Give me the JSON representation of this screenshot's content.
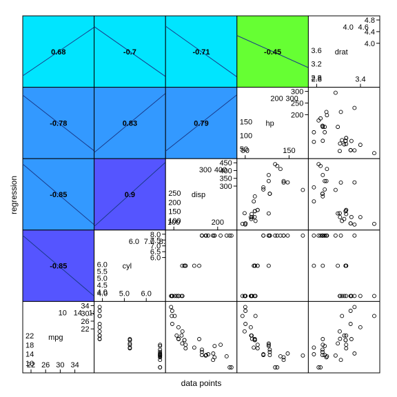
{
  "chart_data": {
    "type": "scatter-matrix",
    "xlabel": "data points",
    "ylabel": "regression",
    "variables": [
      {
        "name": "mpg",
        "range": [
          10.4,
          33.9
        ],
        "side_ticks": [
          "10",
          "14",
          "18",
          "22"
        ],
        "top_ticks": [
          "22",
          "26",
          "30",
          "34"
        ],
        "left_ticks": [
          "10",
          "14",
          "18",
          "22"
        ],
        "right_ticks": [
          "22",
          "26",
          "30",
          "34"
        ]
      },
      {
        "name": "cyl",
        "range": [
          4,
          8
        ],
        "top_ticks": [
          "4.0",
          "5.0",
          "6.0"
        ],
        "left_ticks": [
          "4.0",
          "4.5",
          "5.0",
          "5.5",
          "6.0"
        ],
        "right_ticks": [
          "6.0",
          "6.5",
          "7.0",
          "7.5",
          "8.0"
        ],
        "side_ticks": [
          "6.0",
          "7.0",
          "8.0"
        ]
      },
      {
        "name": "disp",
        "range": [
          71.1,
          472
        ],
        "top_ticks": [
          "100",
          "200"
        ],
        "left_ticks": [
          "100",
          "150",
          "200",
          "250"
        ],
        "right_ticks": [
          "300",
          "350",
          "400",
          "450"
        ],
        "side_ticks": [
          "300",
          "400"
        ]
      },
      {
        "name": "hp",
        "range": [
          52,
          335
        ],
        "top_ticks": [
          "50",
          "150"
        ],
        "left_ticks": [
          "50",
          "100",
          "150"
        ],
        "right_ticks": [
          "200",
          "250",
          "300"
        ],
        "side_ticks": [
          "200",
          "300"
        ]
      },
      {
        "name": "drat",
        "range": [
          2.76,
          4.93
        ],
        "top_ticks": [
          "2.8",
          "3.4"
        ],
        "left_ticks": [
          "2.8",
          "3.2",
          "3.6"
        ],
        "right_ticks": [
          "4.0",
          "4.4",
          "4.8"
        ],
        "side_ticks": [
          "4.0",
          "4.6"
        ]
      }
    ],
    "correlations": [
      {
        "row": "drat",
        "col": "mpg",
        "r": 0.68,
        "label": "0.68",
        "color": "#00E5FF"
      },
      {
        "row": "drat",
        "col": "cyl",
        "r": -0.7,
        "label": "-0.7",
        "color": "#00E5FF"
      },
      {
        "row": "drat",
        "col": "disp",
        "r": -0.71,
        "label": "-0.71",
        "color": "#00E5FF"
      },
      {
        "row": "drat",
        "col": "hp",
        "r": -0.45,
        "label": "-0.45",
        "color": "#66FF33"
      },
      {
        "row": "hp",
        "col": "mpg",
        "r": -0.78,
        "label": "-0.78",
        "color": "#3399FF"
      },
      {
        "row": "hp",
        "col": "cyl",
        "r": 0.83,
        "label": "0.83",
        "color": "#3399FF"
      },
      {
        "row": "hp",
        "col": "disp",
        "r": 0.79,
        "label": "0.79",
        "color": "#3399FF"
      },
      {
        "row": "disp",
        "col": "mpg",
        "r": -0.85,
        "label": "-0.85",
        "color": "#3399FF"
      },
      {
        "row": "disp",
        "col": "cyl",
        "r": 0.9,
        "label": "0.9",
        "color": "#5555FF"
      },
      {
        "row": "cyl",
        "col": "mpg",
        "r": -0.85,
        "label": "-0.85",
        "color": "#5555FF"
      }
    ],
    "observations": {
      "mpg": [
        21,
        21,
        22.8,
        21.4,
        18.7,
        18.1,
        14.3,
        24.4,
        22.8,
        19.2,
        17.8,
        16.4,
        17.3,
        15.2,
        10.4,
        10.4,
        14.7,
        32.4,
        30.4,
        33.9,
        21.5,
        15.5,
        15.2,
        13.3,
        19.2,
        27.3,
        26,
        30.4,
        15.8,
        19.7,
        15,
        21.4
      ],
      "cyl": [
        6,
        6,
        4,
        6,
        8,
        6,
        8,
        4,
        4,
        6,
        6,
        8,
        8,
        8,
        8,
        8,
        8,
        4,
        4,
        4,
        4,
        8,
        8,
        8,
        8,
        4,
        4,
        4,
        8,
        6,
        8,
        4
      ],
      "disp": [
        160,
        160,
        108,
        258,
        360,
        225,
        360,
        146.7,
        140.8,
        167.6,
        167.6,
        275.8,
        275.8,
        275.8,
        472,
        460,
        440,
        78.7,
        75.7,
        71.1,
        120.1,
        318,
        304,
        350,
        400,
        79,
        120.3,
        95.1,
        351,
        145,
        301,
        121
      ],
      "hp": [
        110,
        110,
        93,
        110,
        175,
        105,
        245,
        62,
        95,
        123,
        123,
        180,
        180,
        180,
        205,
        215,
        230,
        66,
        52,
        65,
        97,
        150,
        150,
        245,
        175,
        66,
        91,
        113,
        264,
        175,
        335,
        109
      ],
      "drat": [
        3.9,
        3.9,
        3.85,
        3.08,
        3.15,
        2.76,
        3.21,
        3.69,
        3.92,
        3.92,
        3.92,
        3.07,
        3.07,
        3.07,
        2.93,
        3,
        3.23,
        4.08,
        4.93,
        4.22,
        3.7,
        2.76,
        3.15,
        3.73,
        3.08,
        4.08,
        4.43,
        3.77,
        4.22,
        3.62,
        3.54,
        4.11
      ]
    }
  }
}
